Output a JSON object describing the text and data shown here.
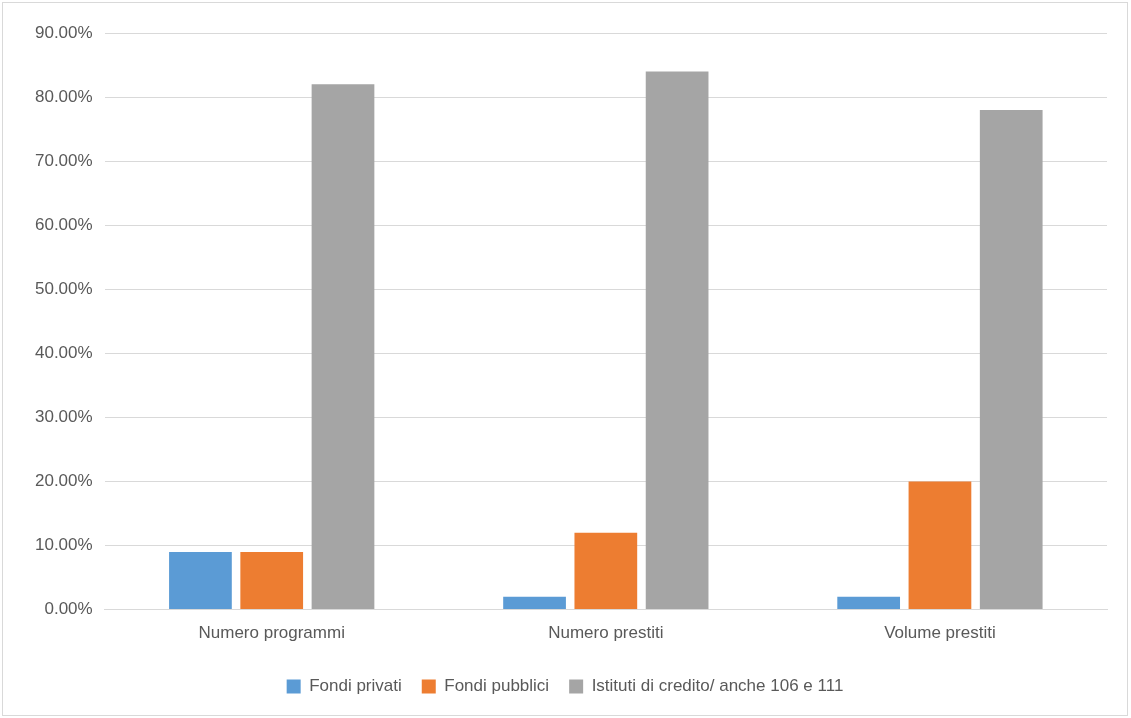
{
  "chart_data": {
    "type": "bar",
    "categories": [
      "Numero programmi",
      "Numero prestiti",
      "Volume prestiti"
    ],
    "series": [
      {
        "name": "Fondi privati",
        "color": "#5b9bd5",
        "values": [
          9,
          2,
          2
        ]
      },
      {
        "name": "Fondi pubblici",
        "color": "#ed7d31",
        "values": [
          9,
          12,
          20
        ]
      },
      {
        "name": "Istituti di credito/ anche 106 e 111",
        "color": "#a5a5a5",
        "values": [
          82,
          84,
          78
        ]
      }
    ],
    "ylim": [
      0,
      90
    ],
    "yticks": [
      {
        "value": 0,
        "label": "0.00%"
      },
      {
        "value": 10,
        "label": "10.00%"
      },
      {
        "value": 20,
        "label": "20.00%"
      },
      {
        "value": 30,
        "label": "30.00%"
      },
      {
        "value": 40,
        "label": "40.00%"
      },
      {
        "value": 50,
        "label": "50.00%"
      },
      {
        "value": 60,
        "label": "60.00%"
      },
      {
        "value": 70,
        "label": "70.00%"
      },
      {
        "value": 80,
        "label": "80.00%"
      },
      {
        "value": 90,
        "label": "90.00%"
      }
    ],
    "grid": "y",
    "legend": "bottom"
  }
}
